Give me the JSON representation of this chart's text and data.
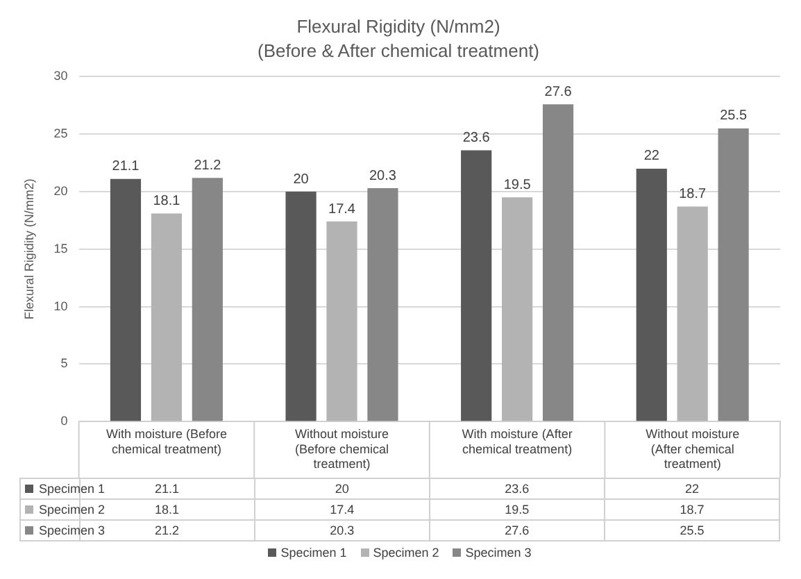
{
  "chart_data": {
    "type": "bar",
    "title": "Flexural Rigidity (N/mm2)",
    "subtitle": "(Before & After chemical treatment)",
    "ylabel": "Flexural Rigidity (N/mm2)",
    "categories": [
      "With moisture (Before chemical treatment)",
      "Without moisture (Before chemical treatment)",
      "With moisture (After chemical treatment)",
      "Without moisture (After chemical treatment)"
    ],
    "series": [
      {
        "name": "Specimen 1",
        "color": "#595959",
        "values": [
          21.1,
          20,
          23.6,
          22
        ]
      },
      {
        "name": "Specimen 2",
        "color": "#b3b3b3",
        "values": [
          18.1,
          17.4,
          19.5,
          18.7
        ]
      },
      {
        "name": "Specimen 3",
        "color": "#878787",
        "values": [
          21.2,
          20.3,
          27.6,
          25.5
        ]
      }
    ],
    "annotations": [
      "21.1",
      "20",
      "23.6",
      "22",
      "18.1",
      "17.4",
      "19.5",
      "18.7",
      "21.2",
      "20.3",
      "27.6",
      "25.5"
    ],
    "ylim": [
      0,
      30
    ],
    "yticks": [
      0,
      5,
      10,
      15,
      20,
      25,
      30
    ],
    "grid": "y",
    "legend": "bottom",
    "data_labels": true
  }
}
